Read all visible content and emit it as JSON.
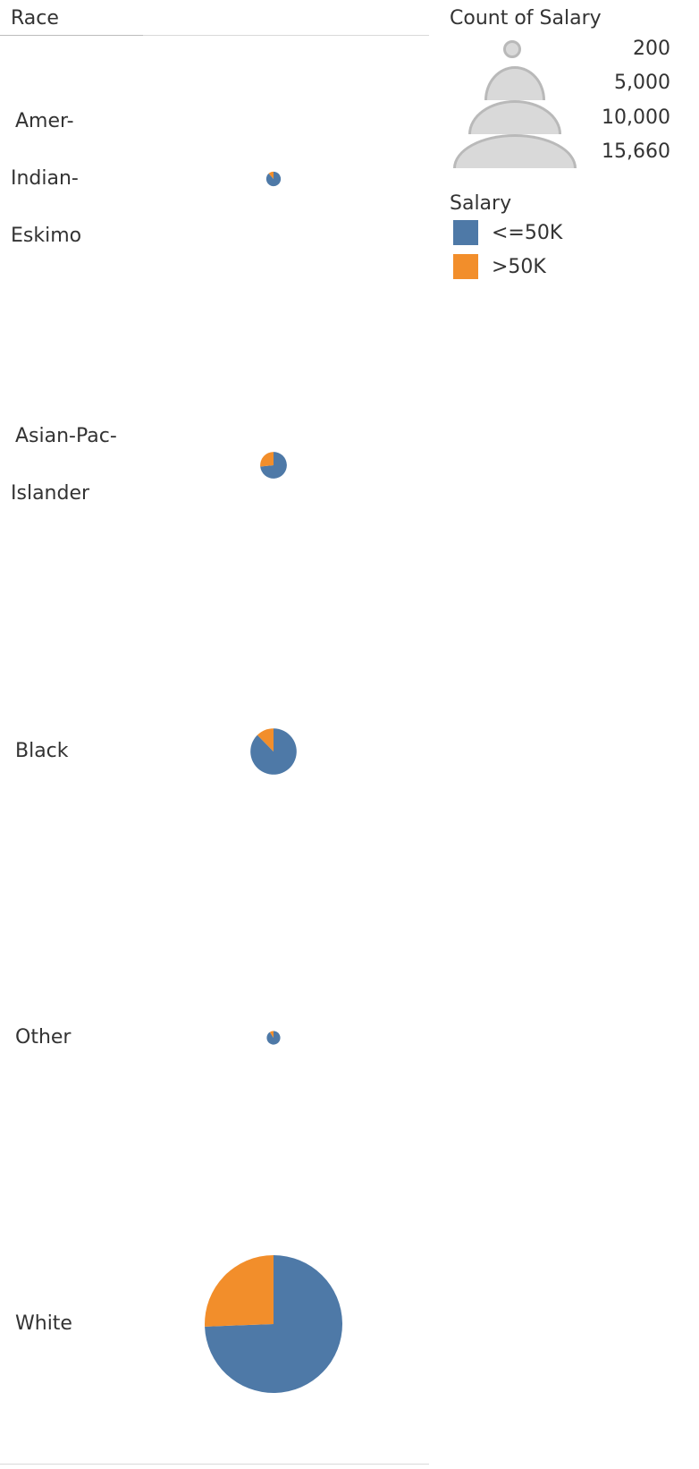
{
  "pane": {
    "header": "Race",
    "rows": [
      {
        "lines": [
          "Amer-",
          "Indian-",
          "Eskimo"
        ]
      },
      {
        "lines": [
          "Asian-Pac-",
          "Islander"
        ]
      },
      {
        "lines": [
          "Black"
        ]
      },
      {
        "lines": [
          "Other"
        ]
      },
      {
        "lines": [
          "White"
        ]
      }
    ]
  },
  "legend": {
    "size_title": "Count of Salary",
    "size_labels": [
      "200",
      "5,000",
      "10,000",
      "15,660"
    ],
    "color_title": "Salary",
    "color_items": [
      {
        "label": "<=50K",
        "color": "#4e79a7"
      },
      {
        "label": ">50K",
        "color": "#f28e2b"
      }
    ]
  },
  "chart_data": {
    "type": "pie",
    "subtype": "pie-per-row",
    "size_measure": "Count of Salary",
    "color_dimension": "Salary",
    "size_legend_values": [
      200,
      5000,
      10000,
      15660
    ],
    "categories": [
      "Amer-Indian-Eskimo",
      "Asian-Pac-Islander",
      "Black",
      "Other",
      "White"
    ],
    "series": [
      {
        "name": "<=50K",
        "color": "#4e79a7",
        "values": [
          275,
          763,
          2737,
          246,
          20699
        ]
      },
      {
        "name": ">50K",
        "color": "#f28e2b",
        "values": [
          36,
          276,
          387,
          25,
          7117
        ]
      }
    ]
  }
}
